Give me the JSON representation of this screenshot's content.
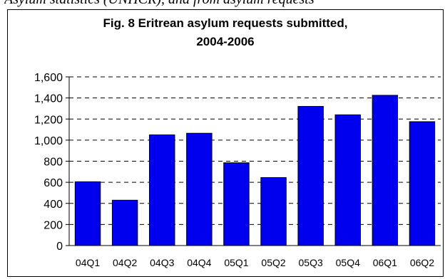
{
  "page": {
    "top_text": "Asylum statistics (UNHCR), and from asylum requests"
  },
  "chart_data": {
    "type": "bar",
    "title_lines": [
      "Fig. 8 Eritrean asylum requests submitted,",
      "2004-2006"
    ],
    "categories": [
      "04Q1",
      "04Q2",
      "04Q3",
      "04Q4",
      "05Q1",
      "05Q2",
      "05Q3",
      "05Q4",
      "06Q1",
      "06Q2"
    ],
    "values": [
      605,
      430,
      1050,
      1065,
      785,
      645,
      1320,
      1240,
      1425,
      1175
    ],
    "y_ticks": [
      "0",
      "200",
      "400",
      "600",
      "800",
      "1,000",
      "1,200",
      "1,400",
      "1,600"
    ],
    "ylim": [
      0,
      1600
    ],
    "xlabel": "",
    "ylabel": "",
    "grid": true,
    "bar_color": "#0000ee",
    "legend": "none"
  }
}
